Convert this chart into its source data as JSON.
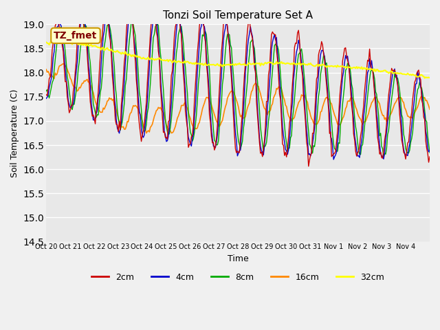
{
  "title": "Tonzi Soil Temperature Set A",
  "xlabel": "Time",
  "ylabel": "Soil Temperature (C)",
  "ylim": [
    14.5,
    19.0
  ],
  "annotation_text": "TZ_fmet",
  "annotation_bg": "#ffffcc",
  "annotation_border": "#cc9900",
  "annotation_text_color": "#800000",
  "bg_color": "#e8e8e8",
  "plot_bg": "#e8e8e8",
  "line_colors": {
    "2cm": "#cc0000",
    "4cm": "#0000cc",
    "8cm": "#00aa00",
    "16cm": "#ff8800",
    "32cm": "#ffff00"
  },
  "legend_labels": [
    "2cm",
    "4cm",
    "8cm",
    "16cm",
    "32cm"
  ],
  "xtick_labels": [
    "Oct 20",
    "Oct 21",
    "Oct 22",
    "Oct 23",
    "Oct 24",
    "Oct 25",
    "Oct 26",
    "Oct 27",
    "Oct 28",
    "Oct 29",
    "Oct 30",
    "Oct 31",
    "Nov 1",
    "Nov 2",
    "Nov 3",
    "Nov 4"
  ],
  "ytick_values": [
    14.5,
    15.0,
    15.5,
    16.0,
    16.5,
    17.0,
    17.5,
    18.0,
    18.5,
    19.0
  ],
  "n_days": 16
}
